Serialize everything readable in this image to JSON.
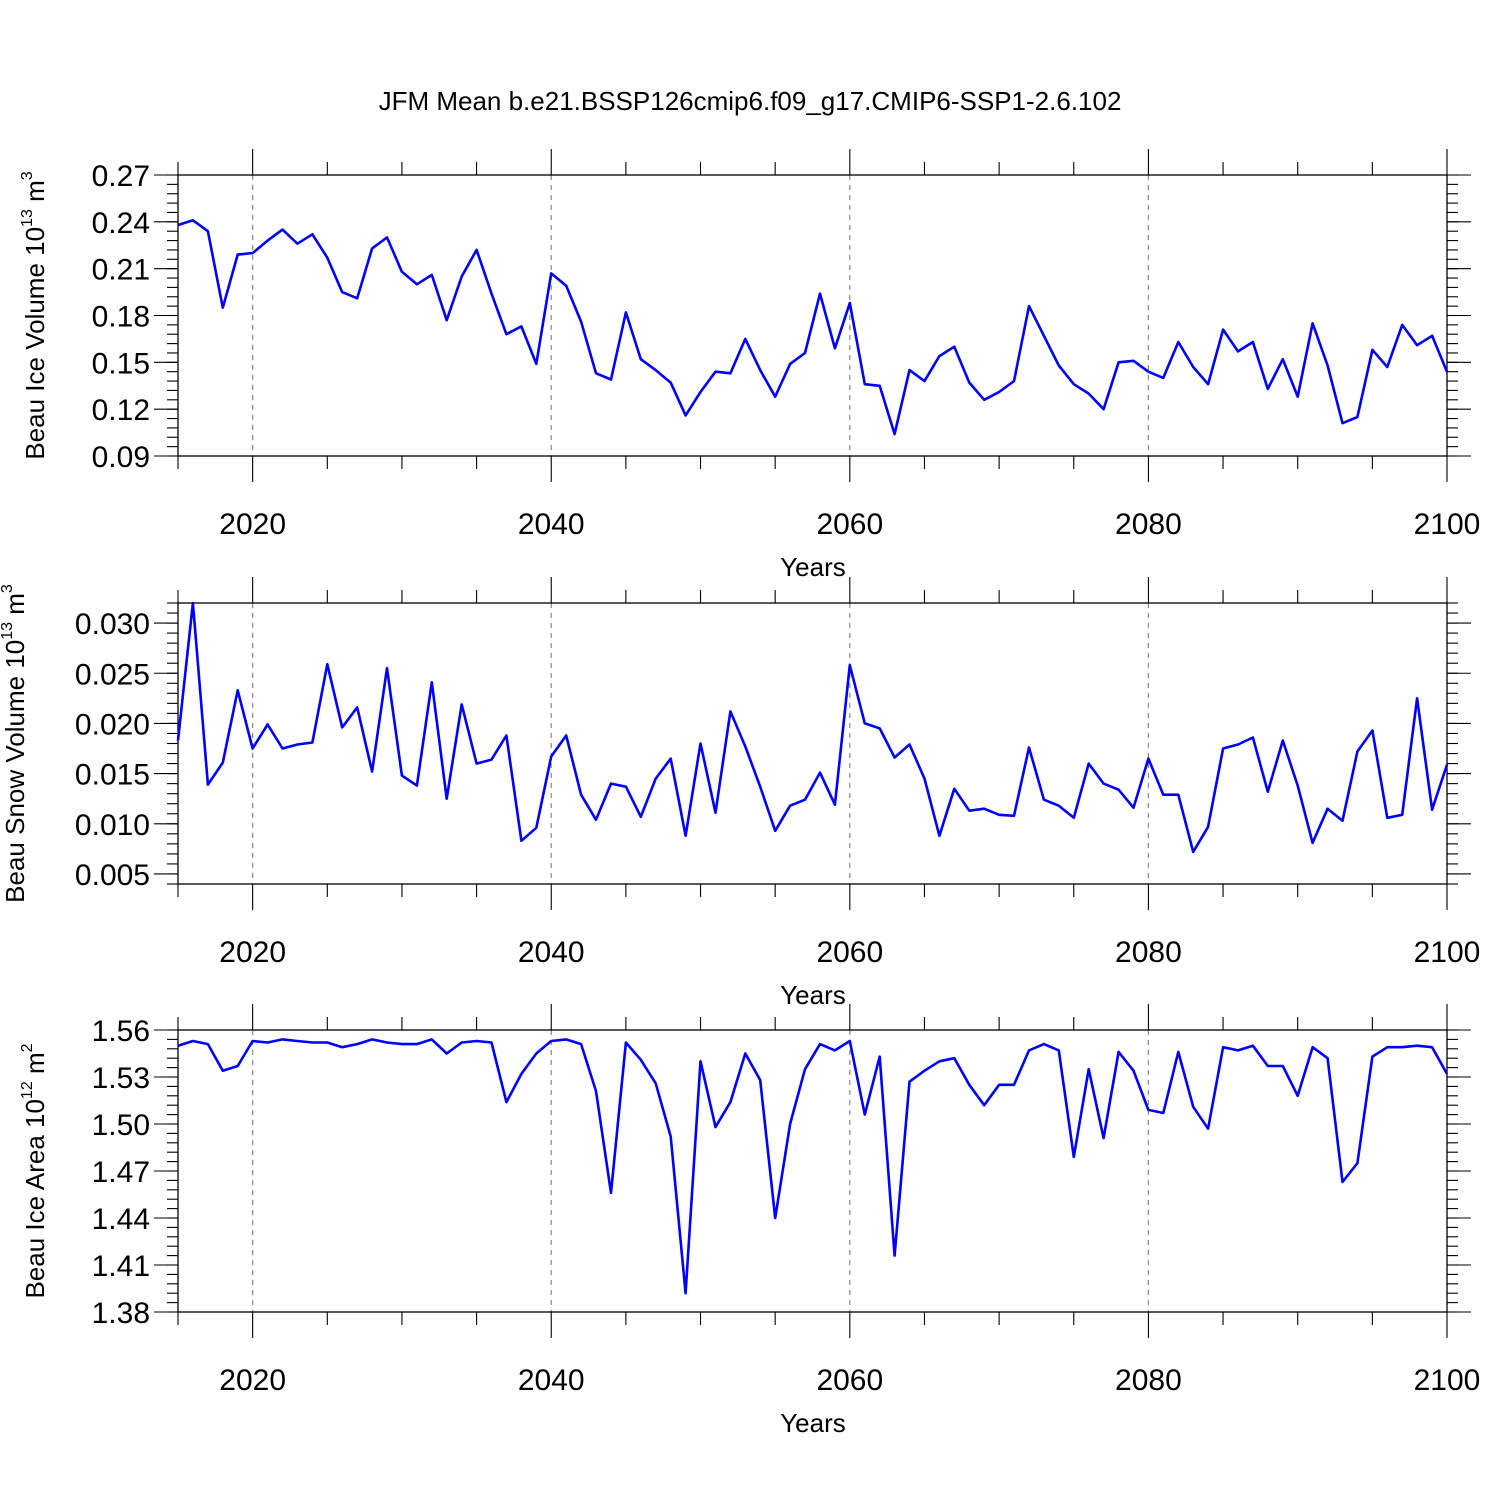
{
  "title": "JFM Mean b.e21.BSSP126cmip6.f09_g17.CMIP6-SSP1-2.6.102",
  "line_color": "#0000ff",
  "chart_data": [
    {
      "type": "line",
      "ylabel": {
        "main": "Beau Ice Volume 10",
        "sup": "13",
        "unit": " m",
        "unit_sup": "3"
      },
      "xlabel": "Years",
      "xlim": [
        2015,
        2100
      ],
      "ylim": [
        0.09,
        0.27
      ],
      "xticks": [
        "2020",
        "2040",
        "2060",
        "2080",
        "2100"
      ],
      "yticks": [
        "0.09",
        "0.12",
        "0.15",
        "0.18",
        "0.21",
        "0.24",
        "0.27"
      ],
      "x_start": 2015,
      "values": [
        0.238,
        0.241,
        0.234,
        0.185,
        0.219,
        0.22,
        0.228,
        0.235,
        0.226,
        0.232,
        0.217,
        0.195,
        0.191,
        0.223,
        0.23,
        0.208,
        0.2,
        0.206,
        0.177,
        0.205,
        0.222,
        0.194,
        0.168,
        0.173,
        0.149,
        0.207,
        0.199,
        0.176,
        0.143,
        0.139,
        0.182,
        0.152,
        0.145,
        0.137,
        0.116,
        0.131,
        0.144,
        0.143,
        0.165,
        0.145,
        0.128,
        0.149,
        0.156,
        0.194,
        0.159,
        0.188,
        0.136,
        0.135,
        0.104,
        0.145,
        0.138,
        0.154,
        0.16,
        0.137,
        0.126,
        0.131,
        0.138,
        0.186,
        0.167,
        0.148,
        0.136,
        0.13,
        0.12,
        0.15,
        0.151,
        0.144,
        0.14,
        0.163,
        0.147,
        0.136,
        0.171,
        0.157,
        0.163,
        0.133,
        0.152,
        0.128,
        0.175,
        0.148,
        0.111,
        0.115,
        0.158,
        0.147,
        0.174,
        0.161,
        0.167,
        0.144
      ]
    },
    {
      "type": "line",
      "ylabel": {
        "main": "Beau Snow Volume 10",
        "sup": "13",
        "unit": " m",
        "unit_sup": "3"
      },
      "xlabel": "Years",
      "xlim": [
        2015,
        2100
      ],
      "ylim": [
        0.004,
        0.032
      ],
      "xticks": [
        "2020",
        "2040",
        "2060",
        "2080",
        "2100"
      ],
      "yticks": [
        "0.005",
        "0.010",
        "0.015",
        "0.020",
        "0.025",
        "0.030"
      ],
      "x_start": 2015,
      "values": [
        0.0183,
        0.032,
        0.0139,
        0.0161,
        0.0233,
        0.0175,
        0.0199,
        0.0175,
        0.0179,
        0.0181,
        0.0259,
        0.0196,
        0.0216,
        0.0152,
        0.0255,
        0.0148,
        0.0138,
        0.0241,
        0.0125,
        0.0219,
        0.016,
        0.0164,
        0.0188,
        0.0083,
        0.0096,
        0.0167,
        0.0188,
        0.0129,
        0.0104,
        0.014,
        0.0137,
        0.0107,
        0.0145,
        0.0165,
        0.0088,
        0.018,
        0.0111,
        0.0212,
        0.0177,
        0.0137,
        0.0093,
        0.0118,
        0.0124,
        0.0151,
        0.0119,
        0.0258,
        0.02,
        0.0195,
        0.0166,
        0.0179,
        0.0145,
        0.0088,
        0.0135,
        0.0113,
        0.0115,
        0.0109,
        0.0108,
        0.0176,
        0.0124,
        0.0118,
        0.0106,
        0.016,
        0.014,
        0.0134,
        0.0116,
        0.0165,
        0.0129,
        0.0129,
        0.0072,
        0.0097,
        0.0175,
        0.0179,
        0.0186,
        0.0132,
        0.0183,
        0.0138,
        0.0081,
        0.0115,
        0.0103,
        0.0172,
        0.0193,
        0.0106,
        0.0109,
        0.0225,
        0.0114,
        0.0159
      ]
    },
    {
      "type": "line",
      "ylabel": {
        "main": "Beau Ice Area 10",
        "sup": "12",
        "unit": " m",
        "unit_sup": "2"
      },
      "xlabel": "Years",
      "xlim": [
        2015,
        2100
      ],
      "ylim": [
        1.38,
        1.56
      ],
      "xticks": [
        "2020",
        "2040",
        "2060",
        "2080",
        "2100"
      ],
      "yticks": [
        "1.38",
        "1.41",
        "1.44",
        "1.47",
        "1.50",
        "1.53",
        "1.56"
      ],
      "x_start": 2015,
      "values": [
        1.55,
        1.553,
        1.551,
        1.534,
        1.537,
        1.553,
        1.552,
        1.554,
        1.553,
        1.552,
        1.552,
        1.549,
        1.551,
        1.554,
        1.552,
        1.551,
        1.551,
        1.554,
        1.545,
        1.552,
        1.553,
        1.552,
        1.514,
        1.532,
        1.545,
        1.553,
        1.554,
        1.551,
        1.521,
        1.456,
        1.552,
        1.541,
        1.526,
        1.492,
        1.392,
        1.54,
        1.498,
        1.514,
        1.545,
        1.528,
        1.44,
        1.5,
        1.535,
        1.551,
        1.547,
        1.553,
        1.506,
        1.543,
        1.416,
        1.527,
        1.534,
        1.54,
        1.542,
        1.525,
        1.512,
        1.525,
        1.525,
        1.547,
        1.551,
        1.547,
        1.479,
        1.535,
        1.491,
        1.546,
        1.534,
        1.509,
        1.507,
        1.546,
        1.511,
        1.497,
        1.549,
        1.547,
        1.55,
        1.537,
        1.537,
        1.518,
        1.549,
        1.542,
        1.463,
        1.475,
        1.543,
        1.549,
        1.549,
        1.55,
        1.549,
        1.532
      ]
    }
  ]
}
